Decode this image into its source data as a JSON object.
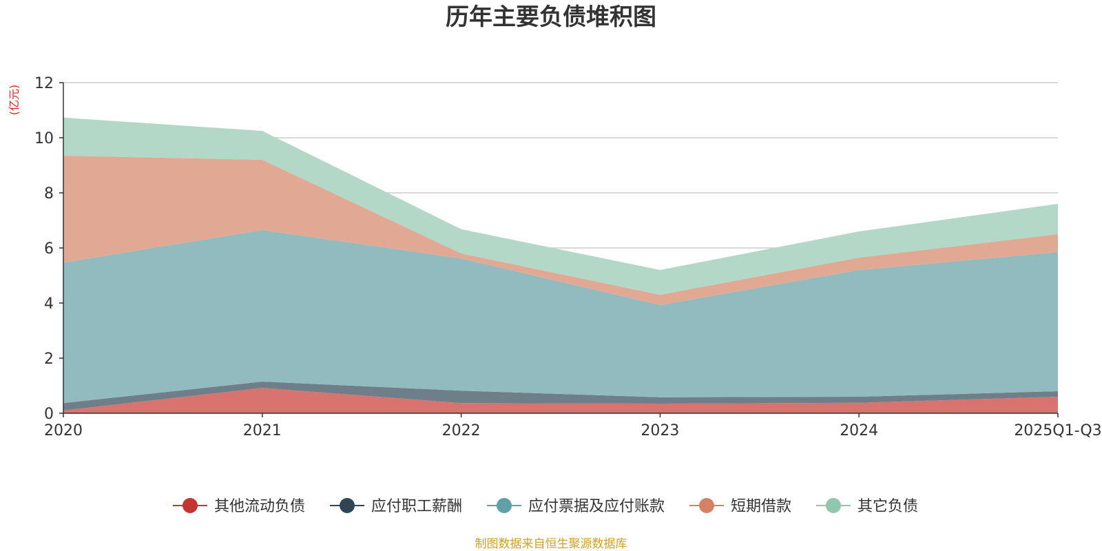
{
  "chart_data": {
    "type": "area",
    "stacked": true,
    "title": "历年主要负债堆积图",
    "ylabel": "(亿元)",
    "xlabel": "",
    "ylim": [
      0,
      12
    ],
    "y_ticks": [
      0,
      2,
      4,
      6,
      8,
      10,
      12
    ],
    "categories": [
      "2020",
      "2021",
      "2022",
      "2023",
      "2024",
      "2025Q1-Q3"
    ],
    "series": [
      {
        "name": "其他流动负债",
        "color": "#c23531",
        "fill": "#d9736f",
        "values": [
          0.1,
          0.92,
          0.37,
          0.35,
          0.38,
          0.6
        ]
      },
      {
        "name": "应付职工薪酬",
        "color": "#2f4554",
        "fill": "#6e7f8a",
        "values": [
          0.27,
          0.23,
          0.45,
          0.23,
          0.22,
          0.2
        ]
      },
      {
        "name": "应付票据及应付账款",
        "color": "#61a0a8",
        "fill": "#92bbc0",
        "values": [
          5.1,
          5.5,
          4.8,
          3.35,
          4.6,
          5.05
        ]
      },
      {
        "name": "短期借款",
        "color": "#d48265",
        "fill": "#e1a893",
        "values": [
          3.88,
          2.55,
          0.18,
          0.37,
          0.45,
          0.65
        ]
      },
      {
        "name": "其它负债",
        "color": "#91c7ae",
        "fill": "#b3d8c7",
        "values": [
          1.38,
          1.05,
          0.88,
          0.9,
          0.95,
          1.1
        ]
      }
    ],
    "grid": true,
    "legend_position": "bottom-center"
  },
  "footer": {
    "source": "制图数据来自恒生聚源数据库",
    "source_color": "#d4a020"
  }
}
